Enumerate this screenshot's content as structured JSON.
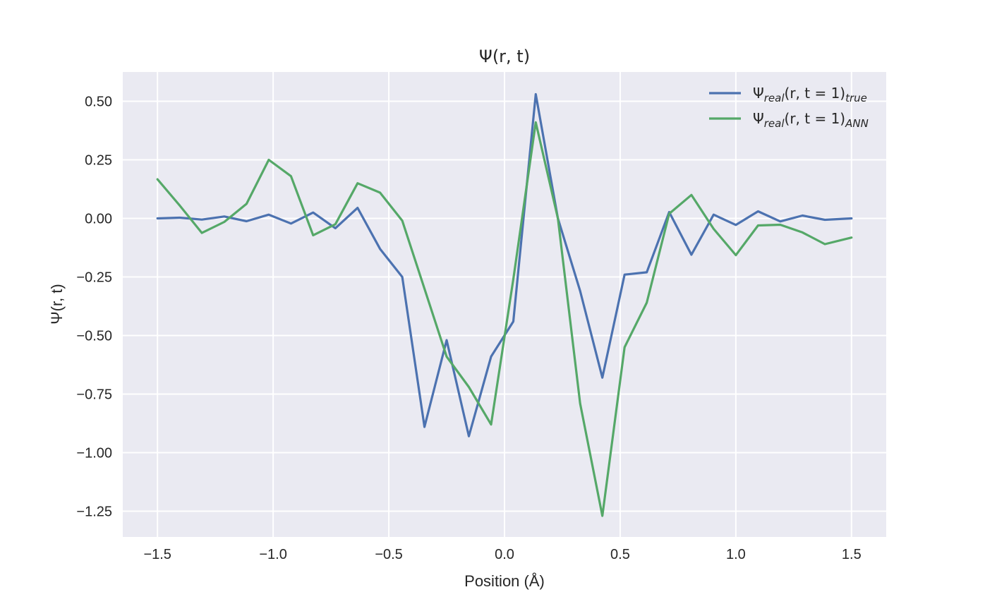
{
  "chart_data": {
    "type": "line",
    "title": "Ψ(r, t)",
    "xlabel": "Position (Å)",
    "ylabel": "Ψ(r, t)",
    "xlim": [
      -1.65,
      1.65
    ],
    "ylim": [
      -1.36,
      0.625
    ],
    "xticks": [
      -1.5,
      -1.0,
      -0.5,
      0.0,
      0.5,
      1.0,
      1.5
    ],
    "xtick_labels": [
      "−1.5",
      "−1.0",
      "−0.5",
      "0.0",
      "0.5",
      "1.0",
      "1.5"
    ],
    "yticks": [
      0.5,
      0.25,
      0.0,
      -0.25,
      -0.5,
      -0.75,
      -1.0,
      -1.25
    ],
    "ytick_labels": [
      "0.50",
      "0.25",
      "0.00",
      "−0.25",
      "−0.50",
      "−0.75",
      "−1.00",
      "−1.25"
    ],
    "grid": true,
    "legend_position": "top-right",
    "x": [
      -1.5,
      -1.404,
      -1.308,
      -1.211,
      -1.115,
      -1.019,
      -0.923,
      -0.827,
      -0.731,
      -0.635,
      -0.538,
      -0.442,
      -0.346,
      -0.25,
      -0.154,
      -0.058,
      0.038,
      0.135,
      0.231,
      0.327,
      0.423,
      0.519,
      0.615,
      0.712,
      0.808,
      0.904,
      1.0,
      1.096,
      1.192,
      1.288,
      1.385,
      1.5
    ],
    "series": [
      {
        "name": "Ψ_real(r, t = 1)_true",
        "legend_main": "Ψ",
        "legend_sub1": "real",
        "legend_args": "(r, t = 1)",
        "legend_sub2": "true",
        "color": "#4c72b0",
        "values": [
          0.0,
          0.003,
          -0.005,
          0.008,
          -0.012,
          0.016,
          -0.022,
          0.025,
          -0.042,
          0.045,
          -0.13,
          -0.25,
          -0.89,
          -0.52,
          -0.93,
          -0.59,
          -0.44,
          0.53,
          0.0,
          -0.31,
          -0.68,
          -0.24,
          -0.23,
          0.027,
          -0.155,
          0.016,
          -0.028,
          0.03,
          -0.013,
          0.012,
          -0.006,
          0.0
        ]
      },
      {
        "name": "Ψ_real(r, t = 1)_ANN",
        "legend_main": "Ψ",
        "legend_sub1": "real",
        "legend_args": "(r, t = 1)",
        "legend_sub2": "ANN",
        "color": "#55a868",
        "values": [
          0.167,
          0.055,
          -0.062,
          -0.015,
          0.062,
          0.25,
          0.18,
          -0.072,
          -0.025,
          0.15,
          0.11,
          -0.01,
          -0.3,
          -0.59,
          -0.72,
          -0.88,
          -0.26,
          0.41,
          0.0,
          -0.79,
          -1.27,
          -0.55,
          -0.36,
          0.02,
          0.1,
          -0.045,
          -0.157,
          -0.03,
          -0.027,
          -0.06,
          -0.11,
          -0.082
        ]
      }
    ]
  }
}
